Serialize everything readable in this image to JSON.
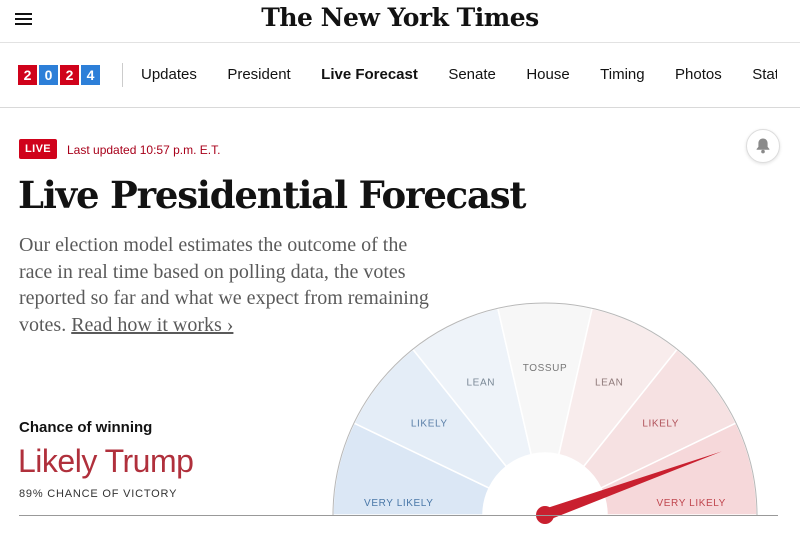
{
  "header": {
    "logo": "The New York Times",
    "menu_icon": "hamburger-menu-icon"
  },
  "nav": {
    "year_digits": [
      "2",
      "0",
      "2",
      "4"
    ],
    "year_colors": [
      "#d0021b",
      "#2d7fd8",
      "#d0021b",
      "#2d7fd8"
    ],
    "links": [
      {
        "label": "Updates",
        "active": false
      },
      {
        "label": "President",
        "active": false
      },
      {
        "label": "Live Forecast",
        "active": true
      },
      {
        "label": "Senate",
        "active": false
      },
      {
        "label": "House",
        "active": false
      },
      {
        "label": "Timing",
        "active": false
      },
      {
        "label": "Photos",
        "active": false
      },
      {
        "label": "State Results",
        "active": false
      }
    ]
  },
  "status": {
    "live_label": "LIVE",
    "last_updated": "Last updated 10:57 p.m. E.T.",
    "bell_icon": "bell-icon"
  },
  "article": {
    "headline": "Live Presidential Forecast",
    "dek": "Our election model estimates the outcome of the race in real time based on polling data, the votes reported so far and what we expect from remaining votes. ",
    "read_link": "Read how it works ›"
  },
  "forecast": {
    "chance_label": "Chance of winning",
    "headline": "Likely Trump",
    "chance_text": "89% CHANCE OF VICTORY",
    "probability": 0.89,
    "colors": {
      "dem": "#1a6ab0",
      "rep": "#b0303c",
      "needle": "#c9202f"
    }
  },
  "gauge": {
    "segments": [
      {
        "label": "VERY LIKELY",
        "fill": "#dbe7f5",
        "text_color": "#4a78a8"
      },
      {
        "label": "LIKELY",
        "fill": "#e4edf7",
        "text_color": "#5a7fa8"
      },
      {
        "label": "LEAN",
        "fill": "#eef3f9",
        "text_color": "#7a8896"
      },
      {
        "label": "TOSSUP",
        "fill": "#f7f7f7",
        "text_color": "#777777"
      },
      {
        "label": "LEAN",
        "fill": "#f8ecec",
        "text_color": "#8f7a7a"
      },
      {
        "label": "LIKELY",
        "fill": "#f6e1e2",
        "text_color": "#b0525a"
      },
      {
        "label": "VERY LIKELY",
        "fill": "#f6d8da",
        "text_color": "#c0474f"
      }
    ]
  }
}
